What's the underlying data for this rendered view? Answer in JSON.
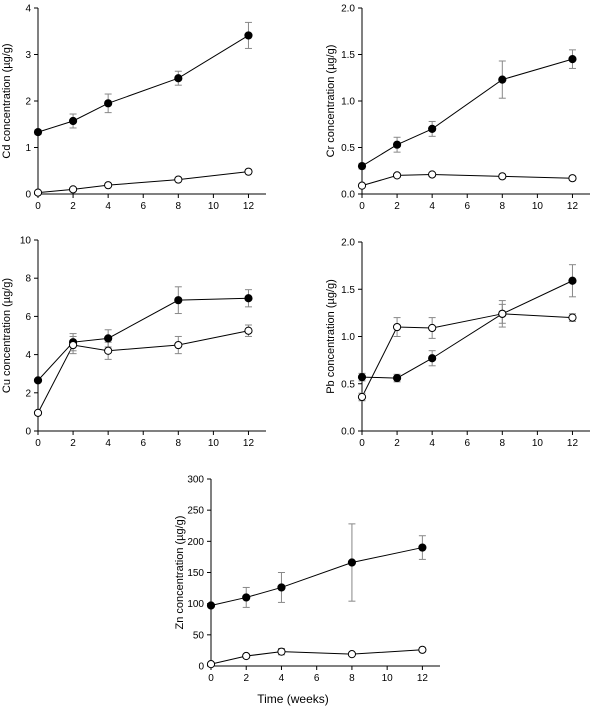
{
  "figure": {
    "xlabel": "Time (weeks)"
  },
  "chart_data": [
    {
      "type": "line",
      "element": "Cd",
      "ylabel": "Cd concentration (µg/g)",
      "xlabel": "",
      "x": [
        0,
        2,
        4,
        8,
        12
      ],
      "xlim": [
        0,
        13
      ],
      "ylim": [
        0,
        4
      ],
      "xticks": [
        "0",
        "2",
        "4",
        "6",
        "8",
        "10",
        "12"
      ],
      "yticks": [
        "0",
        "1",
        "2",
        "3",
        "4"
      ],
      "grid": false,
      "series": [
        {
          "marker": "filled-circle",
          "values": [
            1.33,
            1.57,
            1.95,
            2.49,
            3.41
          ],
          "errors": [
            0.05,
            0.15,
            0.2,
            0.15,
            0.28
          ]
        },
        {
          "marker": "open-circle",
          "values": [
            0.03,
            0.1,
            0.19,
            0.31,
            0.48
          ],
          "errors": [
            0.02,
            0.03,
            0.03,
            0.03,
            0.04
          ]
        }
      ]
    },
    {
      "type": "line",
      "element": "Cr",
      "ylabel": "Cr concentration (µg/g)",
      "xlabel": "",
      "x": [
        0,
        2,
        4,
        8,
        12
      ],
      "xlim": [
        0,
        13
      ],
      "ylim": [
        0,
        2
      ],
      "xticks": [
        "0",
        "2",
        "4",
        "6",
        "8",
        "10",
        "12"
      ],
      "yticks": [
        "0.0",
        "0.5",
        "1.0",
        "1.5",
        "2.0"
      ],
      "grid": false,
      "series": [
        {
          "marker": "filled-circle",
          "values": [
            0.3,
            0.53,
            0.7,
            1.23,
            1.45
          ],
          "errors": [
            0.03,
            0.08,
            0.08,
            0.2,
            0.1
          ]
        },
        {
          "marker": "open-circle",
          "values": [
            0.09,
            0.2,
            0.21,
            0.19,
            0.17
          ],
          "errors": [
            0.02,
            0.02,
            0.02,
            0.02,
            0.02
          ]
        }
      ]
    },
    {
      "type": "line",
      "element": "Cu",
      "ylabel": "Cu concentration (µg/g)",
      "xlabel": "",
      "x": [
        0,
        2,
        4,
        8,
        12
      ],
      "xlim": [
        0,
        13
      ],
      "ylim": [
        0,
        10
      ],
      "xticks": [
        "0",
        "2",
        "4",
        "6",
        "8",
        "10",
        "12"
      ],
      "yticks": [
        "0",
        "2",
        "4",
        "6",
        "8",
        "10"
      ],
      "grid": false,
      "series": [
        {
          "marker": "filled-circle",
          "values": [
            2.65,
            4.65,
            4.85,
            6.85,
            6.95
          ],
          "errors": [
            0.1,
            0.45,
            0.45,
            0.7,
            0.45
          ]
        },
        {
          "marker": "open-circle",
          "values": [
            0.95,
            4.5,
            4.2,
            4.5,
            5.25
          ],
          "errors": [
            0.1,
            0.45,
            0.45,
            0.45,
            0.3
          ]
        }
      ]
    },
    {
      "type": "line",
      "element": "Pb",
      "ylabel": "Pb concentration (µg/g)",
      "xlabel": "",
      "x": [
        0,
        2,
        4,
        8,
        12
      ],
      "xlim": [
        0,
        13
      ],
      "ylim": [
        0,
        2
      ],
      "xticks": [
        "0",
        "2",
        "4",
        "6",
        "8",
        "10",
        "12"
      ],
      "yticks": [
        "0.0",
        "0.5",
        "1.0",
        "1.5",
        "2.0"
      ],
      "grid": false,
      "series": [
        {
          "marker": "filled-circle",
          "values": [
            0.57,
            0.56,
            0.77,
            1.24,
            1.59
          ],
          "errors": [
            0.04,
            0.04,
            0.08,
            0.14,
            0.17
          ]
        },
        {
          "marker": "open-circle",
          "values": [
            0.36,
            1.1,
            1.09,
            1.24,
            1.2
          ],
          "errors": [
            0.04,
            0.1,
            0.11,
            0.1,
            0.04
          ]
        }
      ]
    },
    {
      "type": "line",
      "element": "Zn",
      "ylabel": "Zn concentration (µg/g)",
      "xlabel": "Time (weeks)",
      "x": [
        0,
        2,
        4,
        8,
        12
      ],
      "xlim": [
        0,
        13
      ],
      "ylim": [
        0,
        300
      ],
      "xticks": [
        "0",
        "2",
        "4",
        "6",
        "8",
        "10",
        "12"
      ],
      "yticks": [
        "0",
        "50",
        "100",
        "150",
        "200",
        "250",
        "300"
      ],
      "grid": false,
      "series": [
        {
          "marker": "filled-circle",
          "values": [
            97,
            110,
            126,
            166,
            190
          ],
          "errors": [
            3,
            16,
            24,
            62,
            19
          ]
        },
        {
          "marker": "open-circle",
          "values": [
            3,
            16,
            23,
            19,
            26
          ],
          "errors": [
            2,
            3,
            5,
            2,
            2
          ]
        }
      ]
    }
  ]
}
